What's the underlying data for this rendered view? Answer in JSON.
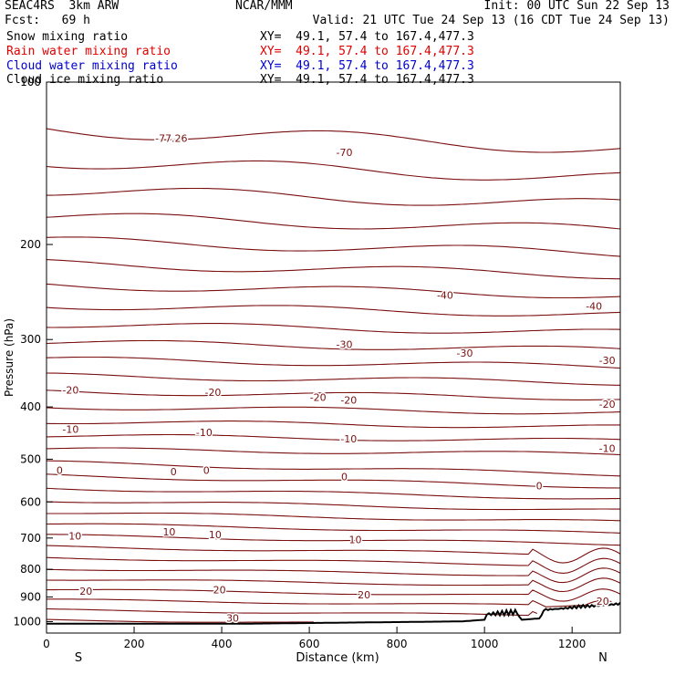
{
  "header": {
    "title_left": "SEAC4RS  3km ARW",
    "title_center": "NCAR/MMM",
    "init": "Init: 00 UTC Sun 22 Sep 13",
    "fcst": "Fcst:   69 h",
    "valid": "Valid: 21 UTC Tue 24 Sep 13 (16 CDT Tue 24 Sep 13)",
    "fields": [
      {
        "name": "Snow mixing ratio",
        "xy": "XY=  49.1, 57.4 to 167.4,477.3",
        "color": "#000000"
      },
      {
        "name": "Rain water mixing ratio",
        "xy": "XY=  49.1, 57.4 to 167.4,477.3",
        "color": "#e00000"
      },
      {
        "name": "Cloud water mixing ratio",
        "xy": "XY=  49.1, 57.4 to 167.4,477.3",
        "color": "#0000d0"
      },
      {
        "name": "Cloud ice mixing ratio",
        "xy": "XY=  49.1, 57.4 to 167.4,477.3",
        "color": "#000000"
      }
    ]
  },
  "chart_data": {
    "type": "line",
    "xlabel": "Distance (km)",
    "ylabel": "Pressure (hPa)",
    "xlim": [
      0,
      1310
    ],
    "ylim": [
      100,
      1050
    ],
    "y_scale": "log",
    "x_ticks": [
      0,
      200,
      400,
      600,
      800,
      1000,
      1200
    ],
    "y_ticks": [
      200,
      300,
      400,
      500,
      600,
      700,
      800,
      900,
      1000
    ],
    "top_tick_label": "100",
    "endpoints": {
      "left": "S",
      "right": "N"
    },
    "contour_color": "#7a1010",
    "terrain_color": "#000000",
    "contour_label_list": [
      "-77.26",
      "-70",
      "-40",
      "-40",
      "-30",
      "-30",
      "-30",
      "-20",
      "-20",
      "-20",
      "-20",
      "-20",
      "-10",
      "-10",
      "-10",
      "-10",
      "0",
      "0",
      "0",
      "0",
      "0",
      "10",
      "10",
      "10",
      "10",
      "20",
      "20",
      "20",
      "20",
      "30"
    ],
    "labels": [
      {
        "text": "-77.26",
        "x": 285,
        "p": 127
      },
      {
        "text": "-70",
        "x": 680,
        "p": 135
      },
      {
        "text": "-40",
        "x": 910,
        "p": 248
      },
      {
        "text": "-40",
        "x": 1250,
        "p": 260
      },
      {
        "text": "-30",
        "x": 680,
        "p": 306
      },
      {
        "text": "-30",
        "x": 955,
        "p": 318
      },
      {
        "text": "-30",
        "x": 1280,
        "p": 328
      },
      {
        "text": "-20",
        "x": 55,
        "p": 372
      },
      {
        "text": "-20",
        "x": 380,
        "p": 376
      },
      {
        "text": "-20",
        "x": 620,
        "p": 384
      },
      {
        "text": "-20",
        "x": 690,
        "p": 388
      },
      {
        "text": "-20",
        "x": 1280,
        "p": 395
      },
      {
        "text": "-10",
        "x": 55,
        "p": 440
      },
      {
        "text": "-10",
        "x": 360,
        "p": 446
      },
      {
        "text": "-10",
        "x": 690,
        "p": 458
      },
      {
        "text": "-10",
        "x": 1280,
        "p": 477
      },
      {
        "text": "0",
        "x": 30,
        "p": 524
      },
      {
        "text": "0",
        "x": 290,
        "p": 527
      },
      {
        "text": "0",
        "x": 365,
        "p": 524
      },
      {
        "text": "0",
        "x": 680,
        "p": 539
      },
      {
        "text": "0",
        "x": 1125,
        "p": 560
      },
      {
        "text": "10",
        "x": 65,
        "p": 694
      },
      {
        "text": "10",
        "x": 280,
        "p": 682
      },
      {
        "text": "10",
        "x": 385,
        "p": 690
      },
      {
        "text": "10",
        "x": 705,
        "p": 704
      },
      {
        "text": "20",
        "x": 90,
        "p": 878
      },
      {
        "text": "20",
        "x": 395,
        "p": 873
      },
      {
        "text": "20",
        "x": 725,
        "p": 892
      },
      {
        "text": "20",
        "x": 1270,
        "p": 917
      },
      {
        "text": "30",
        "x": 425,
        "p": 984
      }
    ]
  }
}
